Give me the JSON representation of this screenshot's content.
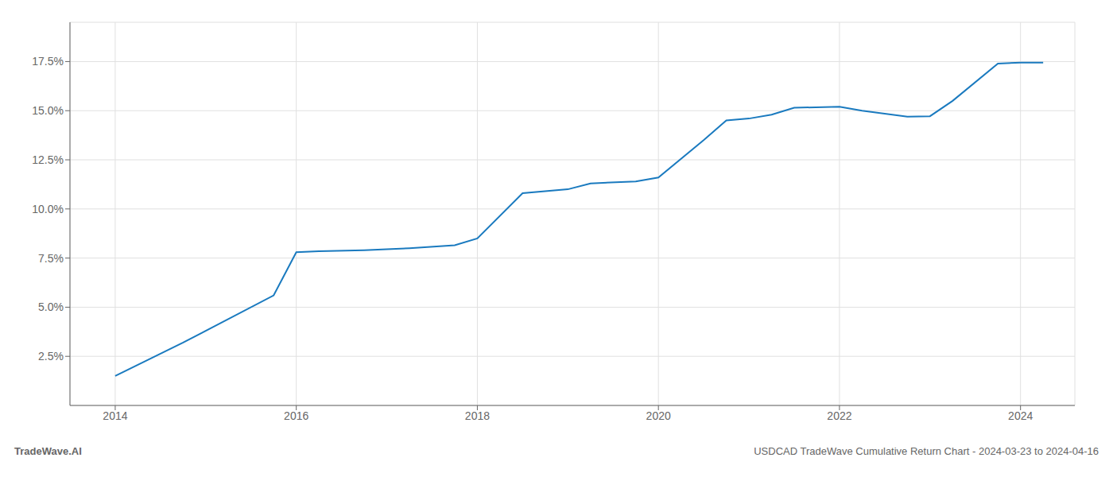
{
  "chart_data": {
    "type": "line",
    "x": [
      2014.0,
      2014.75,
      2015.75,
      2016.0,
      2016.25,
      2016.75,
      2017.0,
      2017.25,
      2017.75,
      2018.0,
      2018.5,
      2019.0,
      2019.25,
      2019.75,
      2020.0,
      2020.5,
      2020.75,
      2021.0,
      2021.25,
      2021.5,
      2022.0,
      2022.25,
      2022.75,
      2023.0,
      2023.25,
      2023.75,
      2024.0,
      2024.25
    ],
    "values": [
      1.5,
      3.2,
      5.6,
      7.8,
      7.85,
      7.9,
      7.95,
      8.0,
      8.15,
      8.5,
      10.8,
      11.0,
      11.3,
      11.4,
      11.6,
      13.5,
      14.5,
      14.6,
      14.8,
      15.15,
      15.2,
      15.0,
      14.7,
      14.72,
      15.5,
      17.4,
      17.45,
      17.45
    ],
    "color": "#1a7abf",
    "xlim": [
      2013.5,
      2024.6
    ],
    "ylim": [
      0.0,
      19.5
    ],
    "xticks": [
      2014,
      2016,
      2018,
      2020,
      2022,
      2024
    ],
    "yticks": [
      {
        "value": 2.5,
        "label": "2.5%"
      },
      {
        "value": 5.0,
        "label": "5.0%"
      },
      {
        "value": 7.5,
        "label": "7.5%"
      },
      {
        "value": 10.0,
        "label": "10.0%"
      },
      {
        "value": 12.5,
        "label": "12.5%"
      },
      {
        "value": 15.0,
        "label": "15.0%"
      },
      {
        "value": 17.5,
        "label": "17.5%"
      }
    ],
    "grid": true,
    "annotations": [
      "TradeWave.AI",
      "USDCAD TradeWave Cumulative Return Chart - 2024-03-23 to 2024-04-16"
    ]
  }
}
